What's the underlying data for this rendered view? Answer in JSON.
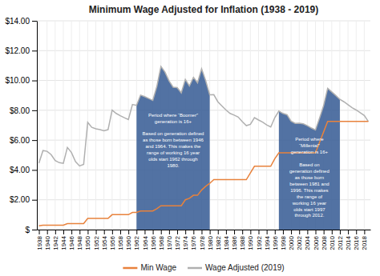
{
  "chart_data": {
    "type": "line",
    "title": "Minimum Wage Adjusted for Inflation (1938 - 2019)",
    "x": [
      1938,
      1939,
      1940,
      1941,
      1942,
      1943,
      1944,
      1945,
      1946,
      1947,
      1948,
      1949,
      1950,
      1951,
      1952,
      1953,
      1954,
      1955,
      1956,
      1957,
      1958,
      1959,
      1960,
      1961,
      1962,
      1963,
      1964,
      1965,
      1966,
      1967,
      1968,
      1969,
      1970,
      1971,
      1972,
      1973,
      1974,
      1975,
      1976,
      1977,
      1978,
      1979,
      1980,
      1981,
      1982,
      1983,
      1984,
      1985,
      1986,
      1987,
      1988,
      1989,
      1990,
      1991,
      1992,
      1993,
      1994,
      1995,
      1996,
      1997,
      1998,
      1999,
      2000,
      2001,
      2002,
      2003,
      2004,
      2005,
      2006,
      2007,
      2008,
      2009,
      2010,
      2011,
      2012,
      2013,
      2014,
      2015,
      2016,
      2017,
      2018,
      2019
    ],
    "series": [
      {
        "name": "Min Wage",
        "color": "#e8823c",
        "values": [
          0.25,
          0.3,
          0.3,
          0.3,
          0.3,
          0.3,
          0.3,
          0.4,
          0.4,
          0.4,
          0.4,
          0.4,
          0.75,
          0.75,
          0.75,
          0.75,
          0.75,
          0.75,
          1.0,
          1.0,
          1.0,
          1.0,
          1.0,
          1.15,
          1.15,
          1.25,
          1.25,
          1.25,
          1.25,
          1.4,
          1.6,
          1.6,
          1.6,
          1.6,
          1.6,
          1.6,
          2.0,
          2.1,
          2.3,
          2.3,
          2.65,
          2.9,
          3.1,
          3.35,
          3.35,
          3.35,
          3.35,
          3.35,
          3.35,
          3.35,
          3.35,
          3.35,
          3.8,
          4.25,
          4.25,
          4.25,
          4.25,
          4.25,
          4.75,
          5.15,
          5.15,
          5.15,
          5.15,
          5.15,
          5.15,
          5.15,
          5.15,
          5.15,
          5.15,
          5.85,
          6.55,
          7.25,
          7.25,
          7.25,
          7.25,
          7.25,
          7.25,
          7.25,
          7.25,
          7.25,
          7.25,
          7.25
        ]
      },
      {
        "name": "Wage Adjusted (2019)",
        "color": "#b0b0b0",
        "values": [
          4.45,
          5.3,
          5.25,
          5.03,
          4.63,
          4.49,
          4.44,
          5.51,
          5.17,
          4.56,
          4.27,
          4.37,
          7.19,
          6.86,
          6.76,
          6.7,
          6.62,
          6.7,
          8.01,
          7.79,
          7.64,
          7.5,
          7.38,
          8.39,
          8.33,
          9.02,
          8.92,
          8.79,
          8.66,
          9.6,
          10.94,
          10.56,
          9.97,
          9.55,
          9.52,
          9.17,
          10.07,
          9.63,
          10.21,
          9.84,
          10.78,
          9.99,
          9.04,
          9.05,
          8.57,
          8.29,
          8.02,
          7.79,
          7.68,
          7.55,
          7.24,
          6.97,
          7.06,
          7.51,
          7.35,
          7.21,
          7.02,
          6.88,
          7.51,
          7.95,
          7.79,
          7.7,
          7.27,
          7.12,
          7.14,
          7.09,
          6.97,
          6.81,
          6.68,
          7.47,
          8.31,
          9.47,
          9.23,
          8.99,
          8.73,
          8.57,
          8.37,
          8.17,
          8.02,
          7.84,
          7.65,
          7.25
        ],
        "highlights": [
          {
            "x_start": 1962,
            "x_end": 1980,
            "color": "#3a5f96",
            "text": "Period where “Boomer”\ngeneration is 16+\n\nBased on generation defined\nas those born between 1946\nand 1964.  This makes the\nrange of working 16 year\nolds start 1962 through\n1980."
          },
          {
            "x_start": 1997,
            "x_end": 2012,
            "color": "#3a5f96",
            "text": "Period where\n“Millenial”\ngeneration is 16+\n\nBased on\ngeneration defined\nas those born\nbetween 1981 and\n1996.  This makes\nthe range of\nworking 16 year\nolds start 1997\nthrough 2012."
          }
        ]
      }
    ],
    "xlim": [
      1937.5,
      2019.5
    ],
    "xticks": [
      1938,
      1940,
      1942,
      1944,
      1946,
      1948,
      1950,
      1952,
      1954,
      1956,
      1958,
      1960,
      1962,
      1964,
      1966,
      1968,
      1970,
      1972,
      1974,
      1976,
      1978,
      1980,
      1982,
      1984,
      1986,
      1988,
      1990,
      1992,
      1994,
      1996,
      1998,
      2000,
      2002,
      2004,
      2006,
      2008,
      2010,
      2012,
      2014,
      2016,
      2018
    ],
    "ylim": [
      0,
      14
    ],
    "yticks": [
      {
        "value": 0,
        "label": "$"
      },
      {
        "value": 2,
        "label": "$2.00"
      },
      {
        "value": 4,
        "label": "$4.00"
      },
      {
        "value": 6,
        "label": "$6.00"
      },
      {
        "value": 8,
        "label": "$8.00"
      },
      {
        "value": 10,
        "label": "$10.00"
      },
      {
        "value": 12,
        "label": "$12.00"
      },
      {
        "value": 14,
        "label": "$14.00"
      }
    ],
    "grid": true,
    "legend": "bottom"
  }
}
